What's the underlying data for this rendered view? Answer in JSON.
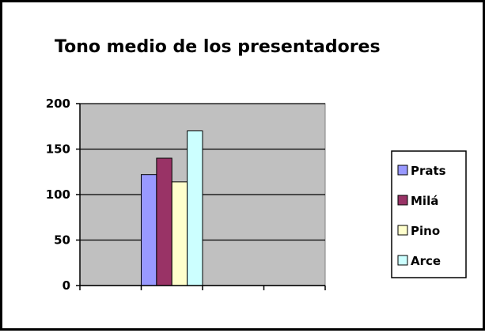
{
  "chart_data": {
    "type": "bar",
    "title": "Tono medio de los presentadores",
    "xlabel": "",
    "ylabel": "",
    "ylim": [
      0,
      200
    ],
    "yticks": [
      0,
      50,
      100,
      150,
      200
    ],
    "grid": true,
    "legend_position": "right",
    "plot_background": "#c0c0c0",
    "x_groups": 4,
    "highlight_group_index": 1,
    "series": [
      {
        "name": "Prats",
        "values": [
          122
        ],
        "color": "#9999ff"
      },
      {
        "name": "Milá",
        "values": [
          140
        ],
        "color": "#993366"
      },
      {
        "name": "Pino",
        "values": [
          114
        ],
        "color": "#ffffcc"
      },
      {
        "name": "Arce",
        "values": [
          170
        ],
        "color": "#ccffff"
      }
    ]
  }
}
